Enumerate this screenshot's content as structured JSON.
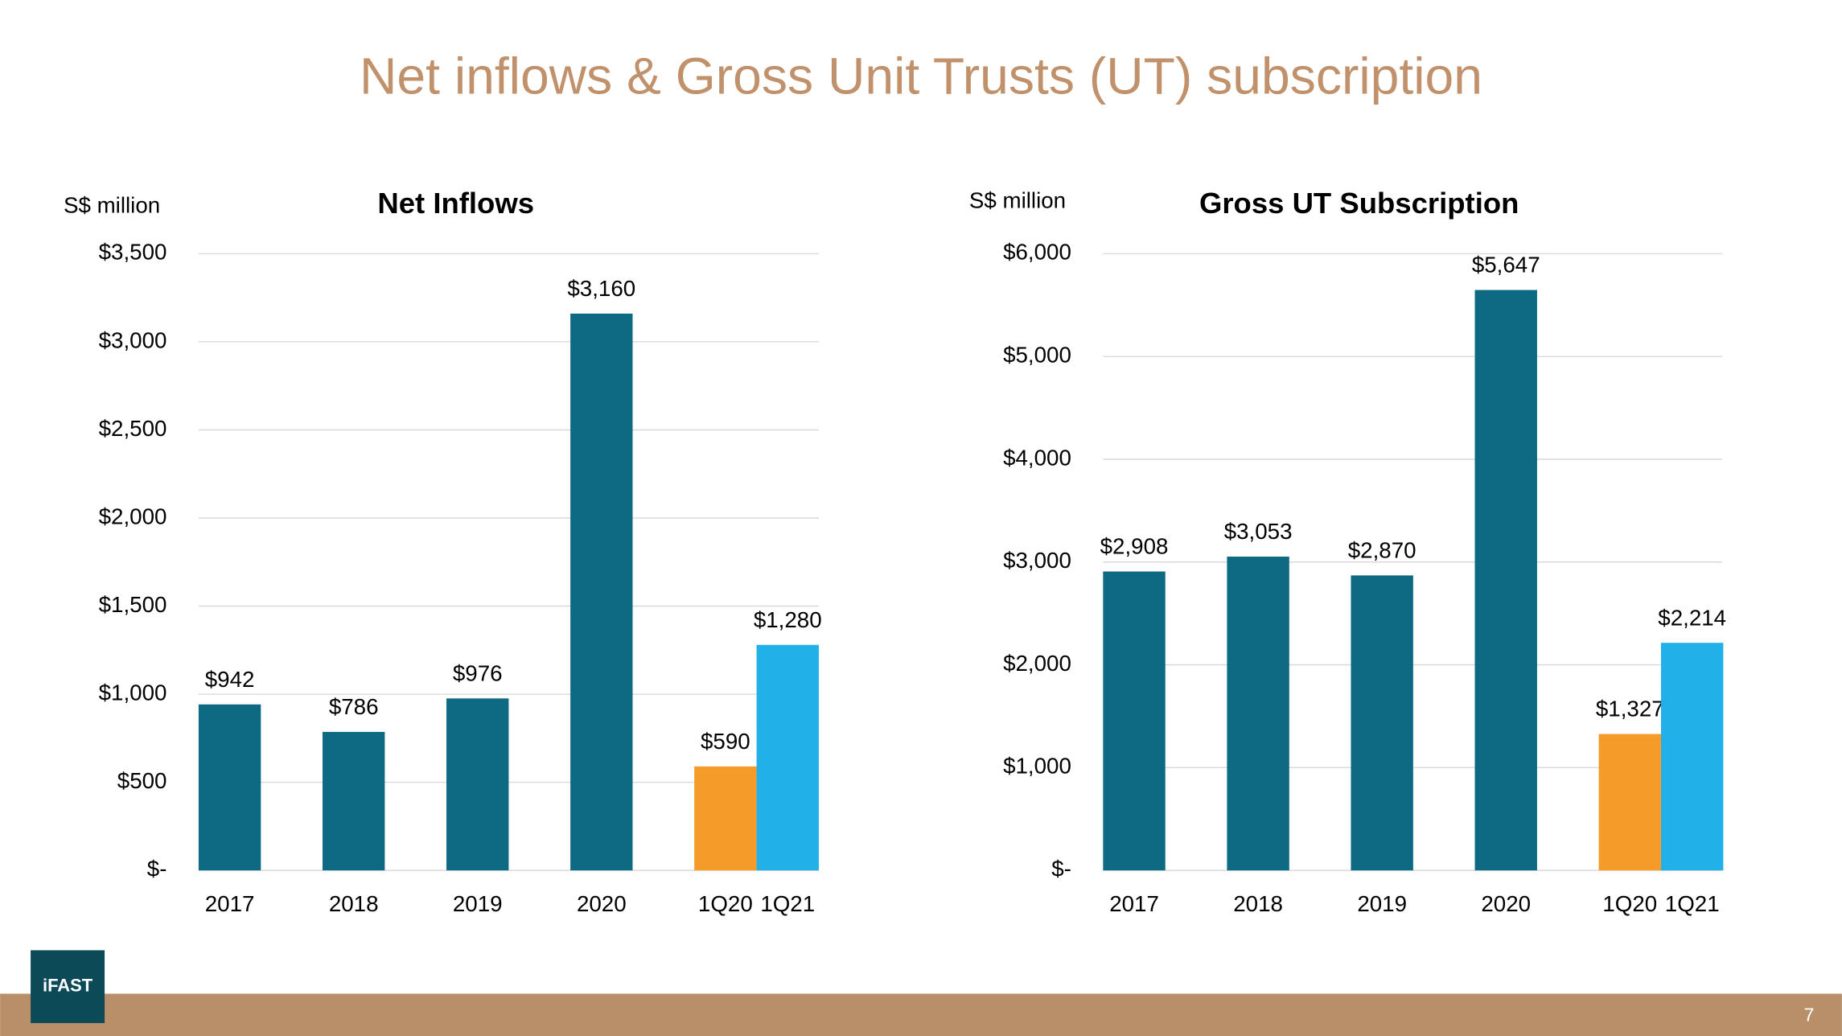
{
  "title": "Net inflows & Gross Unit Trusts (UT) subscription",
  "chart_data": [
    {
      "type": "bar",
      "title": "Net Inflows",
      "ylabel": "S$ million",
      "categories": [
        "2017",
        "2018",
        "2019",
        "2020",
        "1Q20",
        "1Q21"
      ],
      "values": [
        942,
        786,
        976,
        3160,
        590,
        1280
      ],
      "value_labels": [
        "$942",
        "$786",
        "$976",
        "$3,160",
        "$590",
        "$1,280"
      ],
      "colors": [
        "#0e6982",
        "#0e6982",
        "#0e6982",
        "#0e6982",
        "#f59b2a",
        "#21b0e8"
      ],
      "ylim": [
        0,
        3500
      ],
      "yticks": [
        {
          "value": 0,
          "label": "$-"
        },
        {
          "value": 500,
          "label": "$500"
        },
        {
          "value": 1000,
          "label": "$1,000"
        },
        {
          "value": 1500,
          "label": "$1,500"
        },
        {
          "value": 2000,
          "label": "$2,000"
        },
        {
          "value": 2500,
          "label": "$2,500"
        },
        {
          "value": 3000,
          "label": "$3,000"
        },
        {
          "value": 3500,
          "label": "$3,500"
        }
      ],
      "grid": true
    },
    {
      "type": "bar",
      "title": "Gross UT Subscription",
      "ylabel": "S$ million",
      "categories": [
        "2017",
        "2018",
        "2019",
        "2020",
        "1Q20",
        "1Q21"
      ],
      "values": [
        2908,
        3053,
        2870,
        5647,
        1327,
        2214
      ],
      "value_labels": [
        "$2,908",
        "$3,053",
        "$2,870",
        "$5,647",
        "$1,327",
        "$2,214"
      ],
      "colors": [
        "#0e6982",
        "#0e6982",
        "#0e6982",
        "#0e6982",
        "#f59b2a",
        "#21b0e8"
      ],
      "ylim": [
        0,
        6000
      ],
      "yticks": [
        {
          "value": 0,
          "label": "$-"
        },
        {
          "value": 1000,
          "label": "$1,000"
        },
        {
          "value": 2000,
          "label": "$2,000"
        },
        {
          "value": 3000,
          "label": "$3,000"
        },
        {
          "value": 4000,
          "label": "$4,000"
        },
        {
          "value": 5000,
          "label": "$5,000"
        },
        {
          "value": 6000,
          "label": "$6,000"
        }
      ],
      "grid": true
    }
  ],
  "footer": {
    "logo": "iFAST",
    "page": "7"
  }
}
